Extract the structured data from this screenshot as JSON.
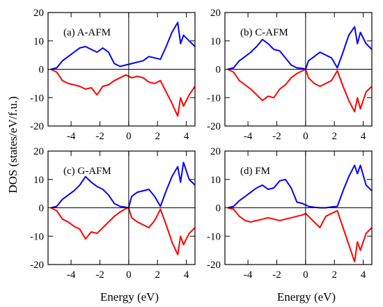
{
  "figure": {
    "ylabel": "DOS (states/eV/f.u.)",
    "xlabel": "Energy (eV)"
  },
  "colors": {
    "spin_up": "#0000ff",
    "spin_down": "#ff0000",
    "axis": "#000000"
  },
  "chart_data": [
    {
      "type": "line",
      "label": "(a) A-AFM",
      "xlim": [
        -5.6,
        4.6
      ],
      "ylim": [
        -20,
        20
      ],
      "xticks": [
        -4,
        -2,
        0,
        2,
        4
      ],
      "yticks": [
        -20,
        -10,
        0,
        10,
        20
      ],
      "series": [
        {
          "x": [
            -5.4,
            -5,
            -4.6,
            -4.2,
            -3.8,
            -3.4,
            -3,
            -2.6,
            -2.2,
            -1.8,
            -1.4,
            -1,
            -0.6,
            -0.2,
            0.2,
            0.6,
            1,
            1.4,
            1.8,
            2.2,
            2.6,
            3,
            3.4,
            3.6,
            3.8,
            4.2,
            4.6
          ],
          "y": [
            0,
            0.5,
            3,
            4.5,
            6,
            7.5,
            8,
            7,
            6,
            7.5,
            6,
            2,
            1,
            1.5,
            2,
            2.5,
            3,
            4.5,
            4,
            3.5,
            8,
            13,
            16.5,
            9,
            12,
            10,
            8
          ]
        },
        {
          "x": [
            -5.4,
            -5,
            -4.6,
            -4.2,
            -3.8,
            -3.4,
            -3,
            -2.6,
            -2.2,
            -1.8,
            -1.4,
            -1,
            -0.6,
            -0.2,
            0.2,
            0.6,
            1,
            1.4,
            1.8,
            2.2,
            2.6,
            3,
            3.4,
            3.6,
            3.8,
            4.2,
            4.6
          ],
          "y": [
            0,
            -1,
            -4,
            -5,
            -5.5,
            -6,
            -7,
            -6.5,
            -9,
            -6,
            -5.5,
            -4,
            -3,
            -2,
            -3,
            -2.5,
            -3,
            -4.5,
            -5,
            -4,
            -8,
            -12,
            -16.5,
            -10,
            -13,
            -9,
            -6
          ]
        }
      ]
    },
    {
      "type": "line",
      "label": "(b) C-AFM",
      "xlim": [
        -5.6,
        4.6
      ],
      "ylim": [
        -20,
        20
      ],
      "xticks": [
        -4,
        -2,
        0,
        2,
        4
      ],
      "yticks": [
        -20,
        -10,
        0,
        10,
        20
      ],
      "series": [
        {
          "x": [
            -5.4,
            -5,
            -4.6,
            -4.2,
            -3.8,
            -3.4,
            -3,
            -2.6,
            -2.2,
            -1.8,
            -1.4,
            -1,
            -0.6,
            -0.2,
            0,
            0.2,
            0.6,
            1,
            1.4,
            1.8,
            2.2,
            2.6,
            3,
            3.4,
            3.6,
            3.8,
            4.2,
            4.6
          ],
          "y": [
            0,
            0.5,
            3,
            4.5,
            6,
            8,
            10.5,
            9,
            7,
            6.5,
            4,
            1.5,
            0.5,
            0.3,
            0,
            3,
            4.5,
            6,
            5,
            4,
            0.5,
            6,
            12,
            15,
            9,
            13,
            9,
            7
          ]
        },
        {
          "x": [
            -5.4,
            -5,
            -4.6,
            -4.2,
            -3.8,
            -3.4,
            -3,
            -2.6,
            -2.2,
            -1.8,
            -1.4,
            -1,
            -0.6,
            -0.2,
            0,
            0.2,
            0.6,
            1,
            1.4,
            1.8,
            2.2,
            2.6,
            3,
            3.4,
            3.6,
            3.8,
            4.2,
            4.6
          ],
          "y": [
            0,
            -1,
            -4,
            -5.5,
            -7,
            -9,
            -11,
            -9.5,
            -10,
            -7,
            -5.5,
            -3,
            -1.5,
            -0.5,
            0,
            -3,
            -5,
            -6,
            -5,
            -4,
            -0.5,
            -6,
            -11,
            -15,
            -10,
            -14,
            -8,
            -6
          ]
        }
      ]
    },
    {
      "type": "line",
      "label": "(c) G-AFM",
      "xlim": [
        -5.6,
        4.6
      ],
      "ylim": [
        -20,
        20
      ],
      "xticks": [
        -4,
        -2,
        0,
        2,
        4
      ],
      "yticks": [
        -20,
        -10,
        0,
        10,
        20
      ],
      "series": [
        {
          "x": [
            -5.4,
            -5,
            -4.6,
            -4.2,
            -3.8,
            -3.4,
            -3,
            -2.6,
            -2.2,
            -1.8,
            -1.4,
            -1,
            -0.6,
            -0.2,
            0,
            0.2,
            0.6,
            1,
            1.4,
            1.8,
            2.2,
            2.6,
            3,
            3.4,
            3.6,
            3.8,
            4.2,
            4.6
          ],
          "y": [
            0,
            0.5,
            3,
            4.5,
            6,
            8,
            11,
            9,
            7.5,
            6.5,
            4.5,
            1.5,
            0.5,
            0.2,
            0,
            4,
            5.5,
            6,
            6.5,
            4,
            0.5,
            6,
            11,
            14.5,
            9,
            16,
            10,
            8
          ]
        },
        {
          "x": [
            -5.4,
            -5,
            -4.6,
            -4.2,
            -3.8,
            -3.4,
            -3,
            -2.6,
            -2.2,
            -1.8,
            -1.4,
            -1,
            -0.6,
            -0.2,
            0,
            0.2,
            0.6,
            1,
            1.4,
            1.8,
            2.2,
            2.6,
            3,
            3.4,
            3.6,
            3.8,
            4.2,
            4.6
          ],
          "y": [
            0,
            -1,
            -4,
            -5,
            -6.5,
            -7.5,
            -11,
            -8.5,
            -9,
            -7,
            -5,
            -3,
            -1.5,
            -0.3,
            0,
            -3.5,
            -5,
            -6,
            -7,
            -4.5,
            -0.5,
            -6,
            -12,
            -16.5,
            -10,
            -13,
            -9,
            -7
          ]
        }
      ]
    },
    {
      "type": "line",
      "label": "(d) FM",
      "xlim": [
        -5.6,
        4.6
      ],
      "ylim": [
        -20,
        20
      ],
      "xticks": [
        -4,
        -2,
        0,
        2,
        4
      ],
      "yticks": [
        -20,
        -10,
        0,
        10,
        20
      ],
      "series": [
        {
          "x": [
            -5.4,
            -5,
            -4.6,
            -4.2,
            -3.8,
            -3.4,
            -3,
            -2.6,
            -2.2,
            -1.8,
            -1.4,
            -1,
            -0.6,
            -0.2,
            0,
            0.2,
            0.6,
            1,
            1.4,
            1.8,
            2.2,
            2.6,
            3,
            3.4,
            3.6,
            3.8,
            4.2,
            4.6
          ],
          "y": [
            0,
            0.5,
            2.5,
            4,
            5.5,
            7,
            8,
            6.5,
            7,
            9.5,
            10,
            7,
            2,
            1.5,
            1,
            0.5,
            0.2,
            0,
            0,
            0.3,
            0.5,
            6,
            11,
            15,
            12,
            15,
            8,
            6
          ]
        },
        {
          "x": [
            -5.4,
            -5,
            -4.6,
            -4.2,
            -3.8,
            -3.4,
            -3,
            -2.6,
            -2.2,
            -1.8,
            -1.4,
            -1,
            -0.6,
            -0.2,
            0,
            0.2,
            0.6,
            1,
            1.4,
            1.8,
            2.2,
            2.6,
            3,
            3.4,
            3.6,
            3.8,
            4.2,
            4.6
          ],
          "y": [
            0,
            -0.5,
            -3,
            -4.5,
            -5,
            -4.5,
            -4,
            -3.5,
            -4,
            -4.5,
            -4,
            -3.5,
            -3,
            -2.5,
            -2,
            -3,
            -5,
            -7,
            -3,
            -2,
            -1,
            -7,
            -13,
            -19,
            -12,
            -15,
            -9,
            -7
          ]
        }
      ]
    }
  ]
}
